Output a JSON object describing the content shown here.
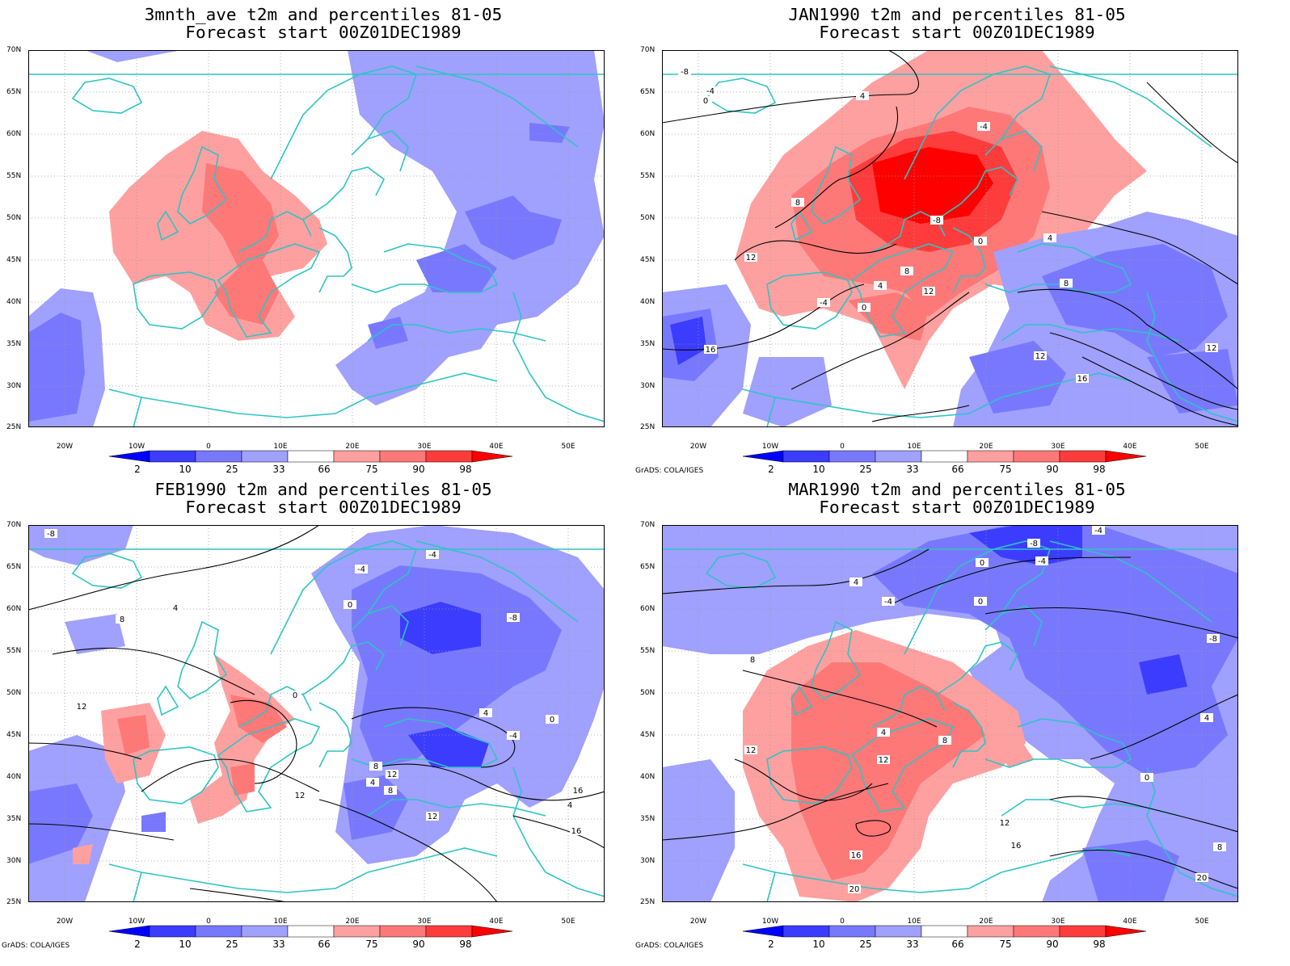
{
  "panels": [
    {
      "id": "p1",
      "title_line1": "3mnth_ave t2m and percentiles 81-05",
      "title_line2": "Forecast start 00Z01DEC1989",
      "credit": ""
    },
    {
      "id": "p2",
      "title_line1": "JAN1990 t2m and percentiles 81-05",
      "title_line2": "Forecast start 00Z01DEC1989",
      "credit": "GrADS: COLA/IGES"
    },
    {
      "id": "p3",
      "title_line1": "FEB1990 t2m and percentiles 81-05",
      "title_line2": "Forecast start 00Z01DEC1989",
      "credit": "GrADS: COLA/IGES"
    },
    {
      "id": "p4",
      "title_line1": "MAR1990 t2m and percentiles 81-05",
      "title_line2": "Forecast start 00Z01DEC1989",
      "credit": "GrADS: COLA/IGES"
    }
  ],
  "lat_labels": [
    "70N",
    "65N",
    "60N",
    "55N",
    "50N",
    "45N",
    "40N",
    "35N",
    "30N",
    "25N"
  ],
  "lon_labels": [
    "20W",
    "10W",
    "0",
    "10E",
    "20E",
    "30E",
    "40E",
    "50E"
  ],
  "colorbar": {
    "labels": [
      "2",
      "10",
      "25",
      "33",
      "66",
      "75",
      "90",
      "98"
    ],
    "colors": [
      "#0000ff",
      "#3c3cff",
      "#7878ff",
      "#a0a0ff",
      "#ffffff",
      "#ffa0a0",
      "#ff7878",
      "#ff3c3c",
      "#ff0000"
    ]
  },
  "shading_colors": {
    "cold_light": "#a0a0ff",
    "cold_mid": "#7878ff",
    "cold_dark": "#3c3cff",
    "warm_light": "#ffa0a0",
    "warm_mid": "#ff7878",
    "warm_dark": "#ff3c3c",
    "warm_max": "#ff0000",
    "coast": "#2ec4c4"
  },
  "contour_labels": {
    "p2": [
      "-8",
      "-4",
      "0",
      "4",
      "8",
      "12",
      "16",
      "-4",
      "0",
      "4",
      "8",
      "12",
      "-8",
      "-4",
      "0",
      "4",
      "8",
      "12",
      "16",
      "12"
    ],
    "p3": [
      "-8",
      "-4",
      "0",
      "4",
      "8",
      "12",
      "-4",
      "-8",
      "0",
      "4",
      "8",
      "12",
      "16",
      "-4",
      "4",
      "8",
      "12",
      "0",
      "4",
      "12",
      "16"
    ],
    "p4": [
      "-8",
      "-4",
      "0",
      "4",
      "8",
      "12",
      "-8",
      "-4",
      "-4",
      "0",
      "4",
      "8",
      "12",
      "16",
      "20",
      "4",
      "0",
      "12",
      "16",
      "20",
      "8"
    ]
  }
}
